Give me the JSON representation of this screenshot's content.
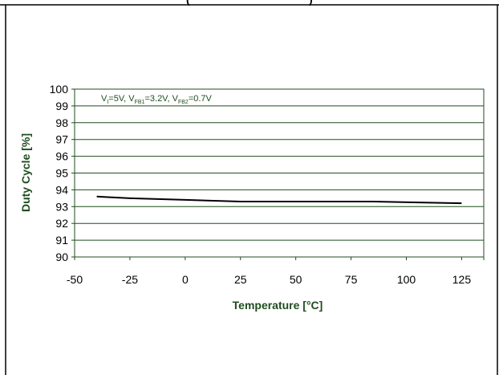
{
  "header_fragment": "(",
  "header_fragment_right": ")",
  "colors": {
    "axis_title": "#1f4d1f",
    "plot_border": "#1f4d1f",
    "gridline": "#1f4d1f",
    "series_line": "#000000",
    "frame": "#000000"
  },
  "chart_data": {
    "type": "line",
    "title": "",
    "xlabel": "Temperature  [°C]",
    "ylabel": "Duty Cycle [%]",
    "xlim": [
      -50,
      135
    ],
    "ylim": [
      90,
      100
    ],
    "xticks": [
      -50,
      -25,
      0,
      25,
      50,
      75,
      100,
      125
    ],
    "yticks": [
      90,
      91,
      92,
      93,
      94,
      95,
      96,
      97,
      98,
      99,
      100
    ],
    "grid": {
      "horizontal": true,
      "vertical": false
    },
    "annotation": {
      "parts": [
        {
          "t": "V",
          "sub": false
        },
        {
          "t": "I",
          "sub": true
        },
        {
          "t": "=5V, V",
          "sub": false
        },
        {
          "t": "FB1",
          "sub": true
        },
        {
          "t": "=3.2V, V",
          "sub": false
        },
        {
          "t": "FB2",
          "sub": true
        },
        {
          "t": "=0.7V",
          "sub": false
        }
      ]
    },
    "series": [
      {
        "x": [
          -40,
          -25,
          0,
          25,
          50,
          85,
          125
        ],
        "y": [
          93.6,
          93.5,
          93.4,
          93.3,
          93.3,
          93.3,
          93.2
        ]
      }
    ]
  }
}
